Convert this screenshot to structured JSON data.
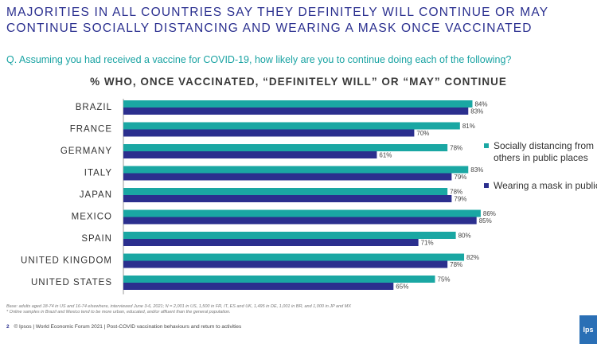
{
  "headline": {
    "line1": "MAJORITIES IN ALL COUNTRIES SAY THEY DEFINITELY WILL CONTINUE OR MAY",
    "line2": "CONTINUE SOCIALLY DISTANCING AND WEARING A MASK ONCE VACCINATED"
  },
  "question": "Q. Assuming you had received a vaccine for COVID-19, how likely are you to continue doing each of the following?",
  "footnotes": {
    "base": "Base: adults aged 18-74 in US and 16-74 elsewhere, interviewed June 3-6, 2021; N = 2,001 in US, 1,500 in FR, IT, ES and UK, 1,495 in DE, 1,001 in BR, and 1,000 in JP and MX",
    "online": "* Online samples in Brazil and Mexico tend to be more urban, educated, and/or affluent than the general population.",
    "page": "2",
    "source": "© Ipsos | World Economic Forum 2021 | Post-COVID vaccination behaviours and return to activities"
  },
  "logo": "Ips",
  "colors": {
    "teal": "#1aa7a3",
    "navy": "#2b2f8e"
  },
  "chart_data": {
    "type": "bar",
    "orientation": "horizontal",
    "title": "% WHO, ONCE VACCINATED, “DEFINITELY WILL” OR “MAY” CONTINUE",
    "categories": [
      "BRAZIL",
      "FRANCE",
      "GERMANY",
      "ITALY",
      "JAPAN",
      "MEXICO",
      "SPAIN",
      "UNITED KINGDOM",
      "UNITED STATES"
    ],
    "series": [
      {
        "name": "Socially distancing from others in public places",
        "color": "#1aa7a3",
        "values": [
          84,
          81,
          78,
          83,
          78,
          86,
          80,
          82,
          75
        ]
      },
      {
        "name": "Wearing a mask in public",
        "color": "#2b2f8e",
        "values": [
          83,
          70,
          61,
          79,
          79,
          85,
          71,
          78,
          65
        ]
      }
    ],
    "value_suffix": "%",
    "xlim": [
      0,
      100
    ],
    "legend_position": "right"
  }
}
